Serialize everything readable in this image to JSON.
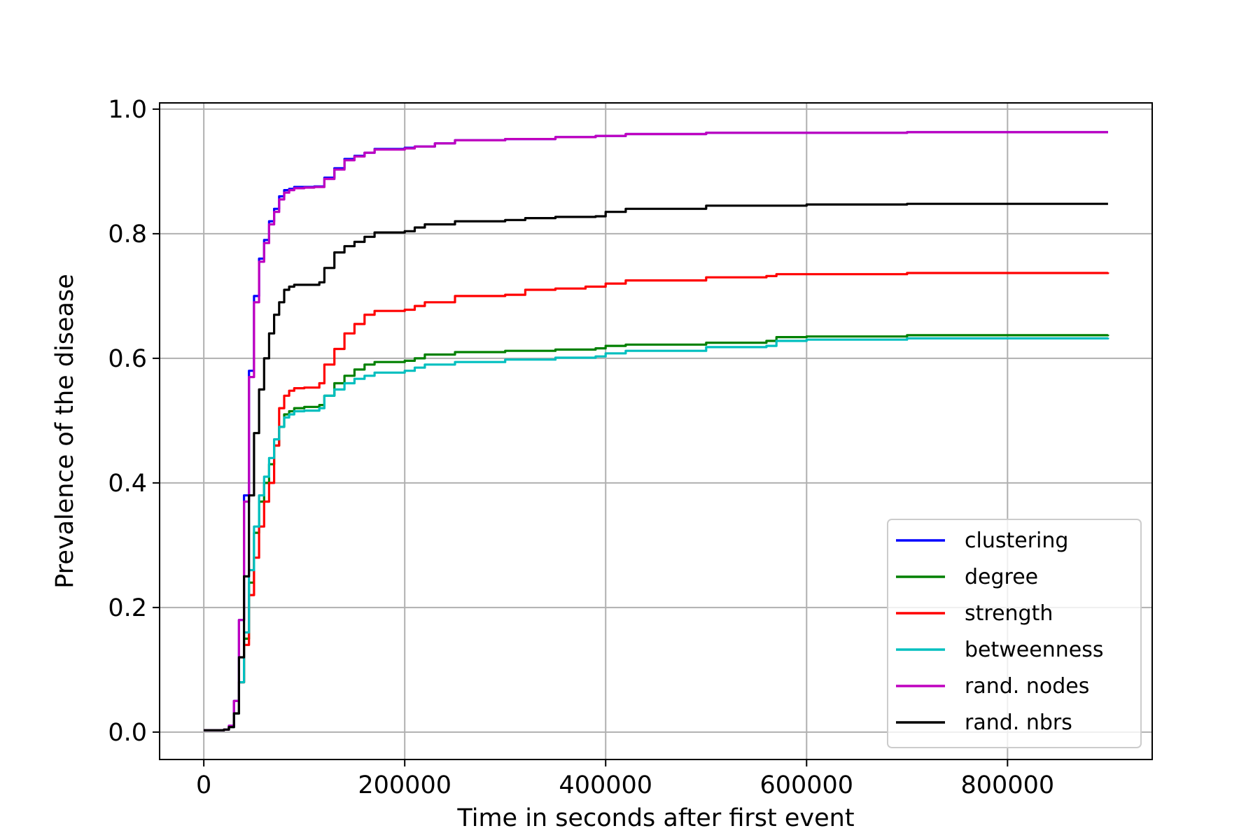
{
  "chart_data": {
    "type": "line",
    "title": "",
    "xlabel": "Time in seconds after first event",
    "ylabel": "Prevalence of the disease",
    "xlim": [
      -44000,
      944000
    ],
    "ylim": [
      -0.044,
      1.01
    ],
    "xticks": [
      0,
      200000,
      400000,
      600000,
      800000
    ],
    "xtick_labels": [
      "0",
      "200000",
      "400000",
      "600000",
      "800000"
    ],
    "yticks": [
      0.0,
      0.2,
      0.4,
      0.6,
      0.8,
      1.0
    ],
    "ytick_labels": [
      "0.0",
      "0.2",
      "0.4",
      "0.6",
      "0.8",
      "1.0"
    ],
    "grid": true,
    "legend_position": "lower-right",
    "series": [
      {
        "name": "clustering",
        "color": "#0000ff",
        "x": [
          0,
          20000,
          25000,
          30000,
          35000,
          40000,
          45000,
          50000,
          55000,
          60000,
          65000,
          70000,
          75000,
          80000,
          85000,
          90000,
          100000,
          110000,
          120000,
          130000,
          140000,
          150000,
          160000,
          170000,
          200000,
          210000,
          230000,
          250000,
          300000,
          350000,
          390000,
          420000,
          500000,
          600000,
          700000,
          900000
        ],
        "y": [
          0.003,
          0.004,
          0.01,
          0.05,
          0.18,
          0.38,
          0.58,
          0.7,
          0.76,
          0.79,
          0.82,
          0.84,
          0.86,
          0.87,
          0.872,
          0.875,
          0.875,
          0.876,
          0.89,
          0.905,
          0.92,
          0.925,
          0.93,
          0.936,
          0.938,
          0.94,
          0.945,
          0.95,
          0.952,
          0.955,
          0.957,
          0.96,
          0.962,
          0.962,
          0.963,
          0.963
        ]
      },
      {
        "name": "degree",
        "color": "#008000",
        "x": [
          0,
          20000,
          25000,
          30000,
          35000,
          40000,
          45000,
          50000,
          55000,
          60000,
          65000,
          70000,
          75000,
          80000,
          85000,
          90000,
          100000,
          115000,
          120000,
          130000,
          140000,
          150000,
          160000,
          170000,
          200000,
          210000,
          220000,
          250000,
          300000,
          350000,
          390000,
          400000,
          420000,
          500000,
          560000,
          570000,
          600000,
          700000,
          900000
        ],
        "y": [
          0.003,
          0.004,
          0.008,
          0.03,
          0.08,
          0.15,
          0.24,
          0.32,
          0.37,
          0.4,
          0.43,
          0.46,
          0.49,
          0.51,
          0.515,
          0.52,
          0.522,
          0.525,
          0.54,
          0.56,
          0.572,
          0.582,
          0.59,
          0.594,
          0.596,
          0.6,
          0.606,
          0.61,
          0.612,
          0.614,
          0.616,
          0.62,
          0.622,
          0.625,
          0.628,
          0.634,
          0.635,
          0.637,
          0.638
        ]
      },
      {
        "name": "strength",
        "color": "#ff0000",
        "x": [
          0,
          20000,
          25000,
          30000,
          35000,
          40000,
          45000,
          50000,
          55000,
          60000,
          65000,
          70000,
          75000,
          80000,
          85000,
          90000,
          100000,
          115000,
          120000,
          130000,
          140000,
          150000,
          160000,
          170000,
          200000,
          210000,
          220000,
          250000,
          300000,
          320000,
          350000,
          380000,
          400000,
          420000,
          500000,
          560000,
          570000,
          700000,
          900000
        ],
        "y": [
          0.003,
          0.004,
          0.008,
          0.03,
          0.08,
          0.14,
          0.22,
          0.28,
          0.33,
          0.37,
          0.4,
          0.46,
          0.52,
          0.54,
          0.548,
          0.552,
          0.553,
          0.56,
          0.59,
          0.615,
          0.64,
          0.655,
          0.67,
          0.676,
          0.678,
          0.684,
          0.69,
          0.7,
          0.702,
          0.71,
          0.712,
          0.715,
          0.72,
          0.725,
          0.73,
          0.732,
          0.735,
          0.737,
          0.738
        ]
      },
      {
        "name": "betweenness",
        "color": "#00bfbf",
        "x": [
          0,
          20000,
          25000,
          30000,
          35000,
          40000,
          45000,
          50000,
          55000,
          60000,
          65000,
          70000,
          75000,
          80000,
          85000,
          90000,
          100000,
          115000,
          120000,
          130000,
          140000,
          150000,
          160000,
          170000,
          200000,
          210000,
          220000,
          250000,
          300000,
          350000,
          390000,
          400000,
          420000,
          500000,
          560000,
          570000,
          600000,
          700000,
          900000
        ],
        "y": [
          0.003,
          0.004,
          0.008,
          0.03,
          0.08,
          0.16,
          0.26,
          0.33,
          0.38,
          0.41,
          0.44,
          0.47,
          0.49,
          0.505,
          0.51,
          0.515,
          0.516,
          0.52,
          0.54,
          0.55,
          0.56,
          0.567,
          0.572,
          0.577,
          0.58,
          0.585,
          0.59,
          0.594,
          0.598,
          0.601,
          0.603,
          0.608,
          0.612,
          0.618,
          0.62,
          0.628,
          0.63,
          0.632,
          0.633
        ]
      },
      {
        "name": "rand. nodes",
        "color": "#bf00bf",
        "x": [
          0,
          20000,
          25000,
          30000,
          35000,
          40000,
          45000,
          50000,
          55000,
          60000,
          65000,
          70000,
          75000,
          80000,
          85000,
          90000,
          100000,
          110000,
          120000,
          130000,
          140000,
          150000,
          160000,
          170000,
          200000,
          210000,
          230000,
          250000,
          300000,
          350000,
          390000,
          420000,
          500000,
          600000,
          700000,
          900000
        ],
        "y": [
          0.003,
          0.004,
          0.01,
          0.05,
          0.18,
          0.37,
          0.57,
          0.69,
          0.755,
          0.785,
          0.815,
          0.835,
          0.855,
          0.866,
          0.87,
          0.873,
          0.874,
          0.875,
          0.888,
          0.903,
          0.918,
          0.924,
          0.93,
          0.935,
          0.937,
          0.94,
          0.945,
          0.95,
          0.952,
          0.955,
          0.957,
          0.96,
          0.962,
          0.962,
          0.963,
          0.963
        ]
      },
      {
        "name": "rand. nbrs",
        "color": "#000000",
        "x": [
          0,
          20000,
          25000,
          30000,
          35000,
          40000,
          45000,
          50000,
          55000,
          60000,
          65000,
          70000,
          75000,
          80000,
          85000,
          90000,
          100000,
          115000,
          120000,
          130000,
          140000,
          150000,
          160000,
          170000,
          200000,
          210000,
          220000,
          250000,
          300000,
          320000,
          350000,
          390000,
          400000,
          420000,
          500000,
          600000,
          700000,
          900000
        ],
        "y": [
          0.003,
          0.004,
          0.008,
          0.03,
          0.12,
          0.25,
          0.38,
          0.48,
          0.55,
          0.6,
          0.64,
          0.67,
          0.69,
          0.71,
          0.715,
          0.718,
          0.718,
          0.722,
          0.745,
          0.77,
          0.78,
          0.787,
          0.795,
          0.802,
          0.804,
          0.81,
          0.815,
          0.82,
          0.822,
          0.825,
          0.827,
          0.828,
          0.835,
          0.84,
          0.845,
          0.847,
          0.848,
          0.848
        ]
      }
    ]
  }
}
